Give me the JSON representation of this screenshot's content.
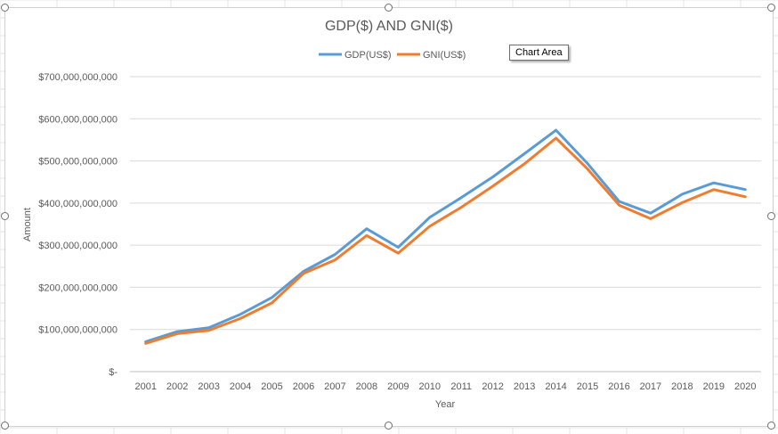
{
  "tooltip": {
    "text": "Chart Area"
  },
  "colors": {
    "gdp": "#5B9BD5",
    "gni": "#ED7D31",
    "gridline": "#d9d9d9",
    "text": "#595959",
    "title": "#595959"
  },
  "chart_data": {
    "type": "line",
    "title": "GDP($) AND GNI($)",
    "xlabel": "Year",
    "ylabel": "Amount",
    "legend_position": "top",
    "grid": true,
    "ylim": [
      0,
      700000000000
    ],
    "y_ticks": [
      {
        "value": 0,
        "label": "$-"
      },
      {
        "value": 100000000000,
        "label": "$100,000,000,000"
      },
      {
        "value": 200000000000,
        "label": "$200,000,000,000"
      },
      {
        "value": 300000000000,
        "label": "$300,000,000,000"
      },
      {
        "value": 400000000000,
        "label": "$400,000,000,000"
      },
      {
        "value": 500000000000,
        "label": "$500,000,000,000"
      },
      {
        "value": 600000000000,
        "label": "$600,000,000,000"
      },
      {
        "value": 700000000000,
        "label": "$700,000,000,000"
      }
    ],
    "categories": [
      "2001",
      "2002",
      "2003",
      "2004",
      "2005",
      "2006",
      "2007",
      "2008",
      "2009",
      "2010",
      "2011",
      "2012",
      "2013",
      "2014",
      "2015",
      "2016",
      "2017",
      "2018",
      "2019",
      "2020"
    ],
    "series": [
      {
        "name": "GDP(US$)",
        "color": "#5B9BD5",
        "values": [
          71000000000,
          95000000000,
          104000000000,
          136000000000,
          176000000000,
          238000000000,
          278000000000,
          339000000000,
          295000000000,
          366000000000,
          413000000000,
          462000000000,
          517000000000,
          573000000000,
          494000000000,
          404000000000,
          376000000000,
          421000000000,
          448000000000,
          432000000000
        ]
      },
      {
        "name": "GNI(US$)",
        "color": "#ED7D31",
        "values": [
          67000000000,
          90000000000,
          98000000000,
          126000000000,
          163000000000,
          233000000000,
          265000000000,
          323000000000,
          281000000000,
          345000000000,
          390000000000,
          440000000000,
          493000000000,
          554000000000,
          481000000000,
          395000000000,
          363000000000,
          401000000000,
          432000000000,
          415000000000
        ]
      }
    ]
  }
}
